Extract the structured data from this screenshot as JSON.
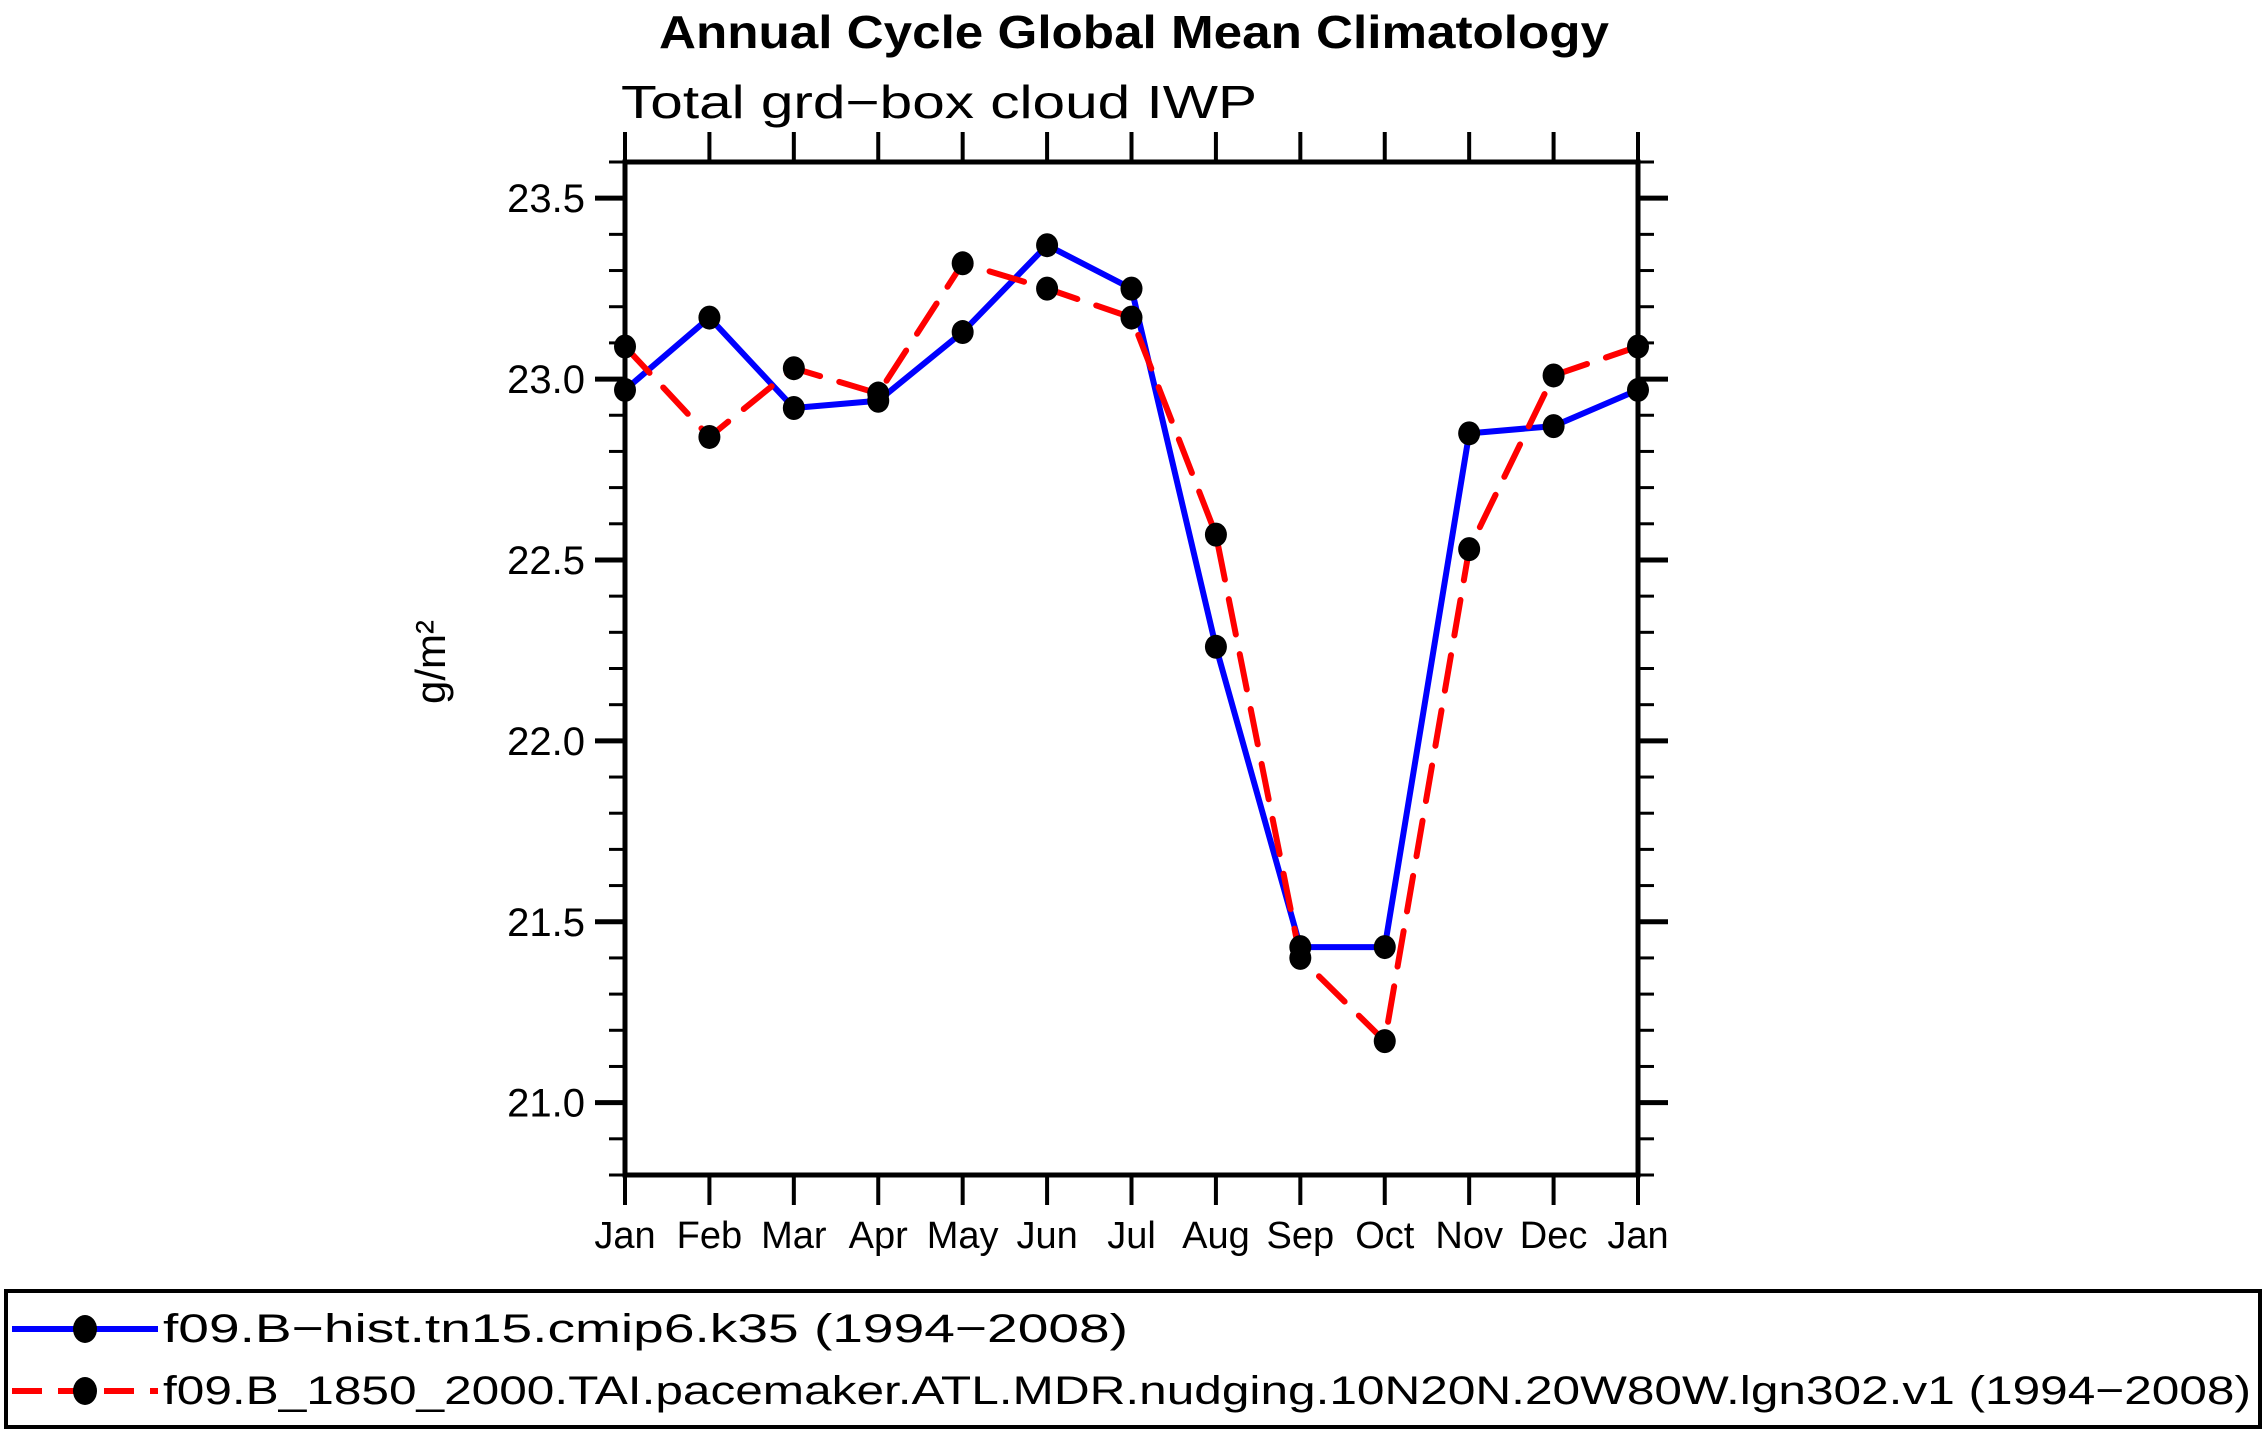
{
  "title": "Annual Cycle Global Mean Climatology",
  "subtitle": "Total grd−box cloud IWP",
  "y_axis_label": "g/m²",
  "colors": {
    "series1": "#0000ff",
    "series2": "#ff0000",
    "marker": "#000000",
    "axis": "#000000",
    "background": "#ffffff"
  },
  "chart_data": {
    "type": "line",
    "title": "Annual Cycle Global Mean Climatology",
    "subtitle": "Total grd−box cloud IWP",
    "xlabel": "",
    "ylabel": "g/m²",
    "x_tick_labels": [
      "Jan",
      "Feb",
      "Mar",
      "Apr",
      "May",
      "Jun",
      "Jul",
      "Aug",
      "Sep",
      "Oct",
      "Nov",
      "Dec",
      "Jan"
    ],
    "ylim": [
      20.8,
      23.6
    ],
    "y_major_ticks": [
      21.0,
      21.5,
      22.0,
      22.5,
      23.0,
      23.5
    ],
    "y_minor_step": 0.1,
    "grid": false,
    "legend_position": "bottom",
    "series": [
      {
        "name": "f09.B−hist.tn15.cmip6.k35 (1994−2008)",
        "color": "#0000ff",
        "style": "solid",
        "marker": "dot",
        "values": [
          22.97,
          23.17,
          22.92,
          22.94,
          23.13,
          23.37,
          23.25,
          22.26,
          21.43,
          21.43,
          22.85,
          22.87,
          22.97
        ]
      },
      {
        "name": "f09.B_1850_2000.TAI.pacemaker.ATL.MDR.nudging.10N20N.20W80W.lgn302.v1 (1994−2008)",
        "color": "#ff0000",
        "style": "dashed",
        "marker": "dot",
        "values": [
          23.09,
          22.84,
          23.03,
          22.96,
          23.32,
          23.25,
          23.17,
          22.57,
          21.4,
          21.17,
          22.53,
          23.01,
          23.09
        ]
      }
    ]
  }
}
